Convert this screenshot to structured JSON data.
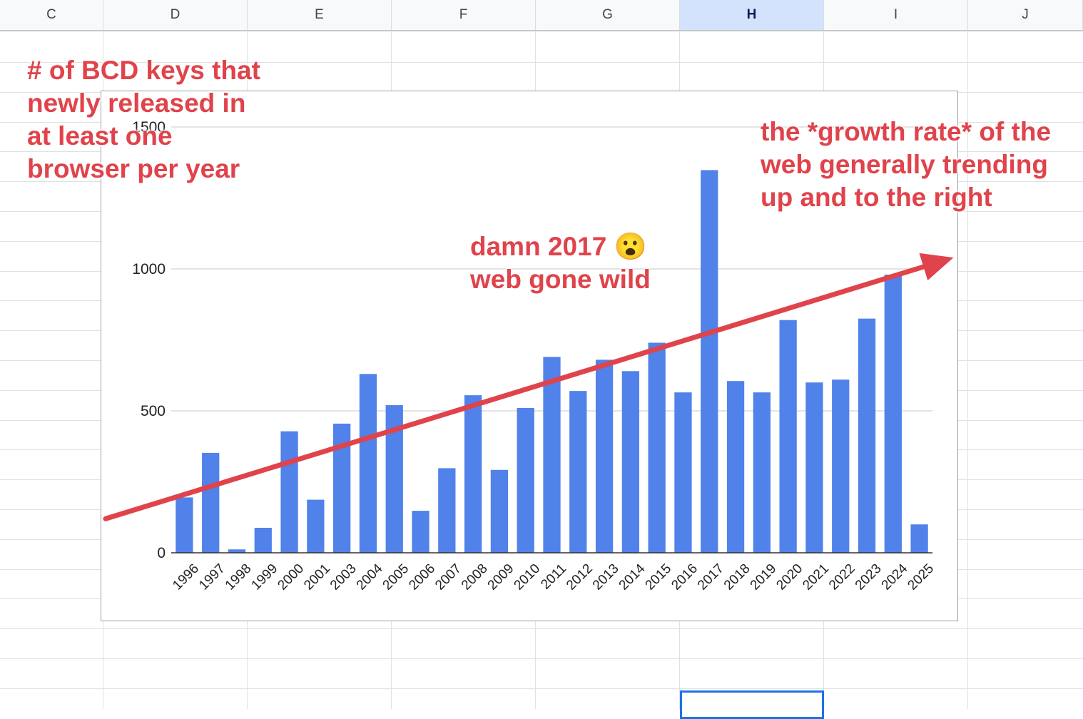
{
  "sheet": {
    "columns": [
      "C",
      "D",
      "E",
      "F",
      "G",
      "H",
      "I",
      "J"
    ],
    "selected_column": "H"
  },
  "chart_data": {
    "type": "bar",
    "categories": [
      "1996",
      "1997",
      "1998",
      "1999",
      "2000",
      "2001",
      "2003",
      "2004",
      "2005",
      "2006",
      "2007",
      "2008",
      "2009",
      "2010",
      "2011",
      "2012",
      "2013",
      "2014",
      "2015",
      "2016",
      "2017",
      "2018",
      "2019",
      "2020",
      "2021",
      "2022",
      "2023",
      "2024",
      "2025"
    ],
    "values": [
      195,
      352,
      12,
      88,
      428,
      187,
      455,
      630,
      520,
      148,
      298,
      555,
      292,
      510,
      690,
      570,
      680,
      640,
      740,
      565,
      1348,
      605,
      565,
      820,
      600,
      610,
      825,
      980,
      100
    ],
    "ylim": [
      0,
      1500
    ],
    "yticks": [
      0,
      500,
      1000,
      1500
    ],
    "grid": true,
    "bar_color": "#5082ea",
    "gridline_color": "#c8c8c8"
  },
  "annotations": {
    "color": "#e0434b",
    "title_lines": [
      "# of BCD keys that",
      "newly released in",
      "at least one",
      "browser per year"
    ],
    "spike_lines": [
      "damn 2017 😮",
      "web gone wild"
    ],
    "trend_lines": [
      "the *growth rate* of the",
      "web generally trending",
      "up and to the right"
    ],
    "trend_arrow": {
      "from": {
        "x": "1996",
        "y": 120
      },
      "to": {
        "x": "2025",
        "y": 1040
      }
    }
  }
}
